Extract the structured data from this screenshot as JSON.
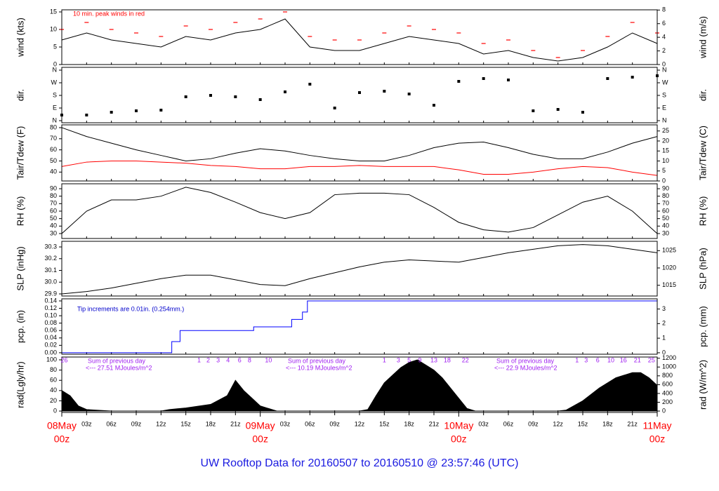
{
  "title": "UW Rooftop Data for 20160507  to  20160510 @ 23:57:46  (UTC)",
  "x_axis": {
    "xlim": [
      0,
      72
    ],
    "xticks": [
      {
        "value": 3,
        "label": "03z"
      },
      {
        "value": 6,
        "label": "06z"
      },
      {
        "value": 9,
        "label": "09z"
      },
      {
        "value": 12,
        "label": "12z"
      },
      {
        "value": 15,
        "label": "15z"
      },
      {
        "value": 18,
        "label": "18z"
      },
      {
        "value": 21,
        "label": "21z"
      },
      {
        "value": 27,
        "label": "03z"
      },
      {
        "value": 30,
        "label": "06z"
      },
      {
        "value": 33,
        "label": "09z"
      },
      {
        "value": 36,
        "label": "12z"
      },
      {
        "value": 39,
        "label": "15z"
      },
      {
        "value": 42,
        "label": "18z"
      },
      {
        "value": 45,
        "label": "21z"
      },
      {
        "value": 51,
        "label": "03z"
      },
      {
        "value": 54,
        "label": "06z"
      },
      {
        "value": 57,
        "label": "09z"
      },
      {
        "value": 60,
        "label": "12z"
      },
      {
        "value": 63,
        "label": "15z"
      },
      {
        "value": 66,
        "label": "18z"
      },
      {
        "value": 69,
        "label": "21z"
      }
    ],
    "date_ticks": [
      {
        "value": 0,
        "label": "08May",
        "sub": "00z"
      },
      {
        "value": 24,
        "label": "09May",
        "sub": "00z"
      },
      {
        "value": 48,
        "label": "10May",
        "sub": "00z"
      },
      {
        "value": 72,
        "label": "11May",
        "sub": "00z"
      }
    ],
    "color": "#ff0000"
  },
  "chart_data": [
    {
      "type": "line",
      "ylabel": "wind (kts)",
      "y2label": "wind (m/s)",
      "annotation": "10 min. peak winds in red",
      "annotation_color": "#ff0000",
      "ylim": [
        0,
        15.6
      ],
      "yticks": [
        0,
        5,
        10,
        15
      ],
      "y2lim": [
        0,
        8.03
      ],
      "y2ticks": [
        0,
        2,
        4,
        6,
        8
      ],
      "x": [
        0,
        3,
        6,
        9,
        12,
        15,
        18,
        21,
        24,
        27,
        30,
        33,
        36,
        39,
        42,
        45,
        48,
        51,
        54,
        57,
        60,
        63,
        66,
        69,
        72
      ],
      "series": [
        {
          "color": "#000000",
          "values": [
            7,
            9,
            7,
            6,
            5,
            8,
            7,
            9,
            10,
            13,
            5,
            4,
            4,
            6,
            8,
            7,
            6,
            3,
            4,
            2,
            1,
            2,
            5,
            9,
            6
          ]
        },
        {
          "color": "#ff0000",
          "marker": "dash",
          "values": [
            10,
            12,
            10,
            9,
            8,
            11,
            10,
            12,
            13,
            15,
            8,
            7,
            7,
            9,
            11,
            10,
            9,
            6,
            7,
            4,
            2,
            4,
            8,
            12,
            9
          ]
        }
      ]
    },
    {
      "type": "scatter",
      "ylabel": "dir.",
      "y2label": "dir.",
      "ylim": [
        -15,
        380
      ],
      "yticks": [
        {
          "value": 0,
          "label": "N"
        },
        {
          "value": 90,
          "label": "E"
        },
        {
          "value": 180,
          "label": "S"
        },
        {
          "value": 270,
          "label": "W"
        },
        {
          "value": 360,
          "label": "N"
        }
      ],
      "y2lim": [
        -15,
        380
      ],
      "y2ticks": [
        {
          "value": 0,
          "label": "N"
        },
        {
          "value": 90,
          "label": "E"
        },
        {
          "value": 180,
          "label": "S"
        },
        {
          "value": 270,
          "label": "W"
        },
        {
          "value": 360,
          "label": "N"
        }
      ],
      "x": [
        0,
        3,
        6,
        9,
        12,
        15,
        18,
        21,
        24,
        27,
        30,
        33,
        36,
        39,
        42,
        45,
        48,
        51,
        54,
        57,
        60,
        63,
        66,
        69,
        72
      ],
      "series": [
        {
          "color": "#000000",
          "values": [
            40,
            40,
            60,
            70,
            75,
            170,
            180,
            170,
            150,
            205,
            260,
            90,
            200,
            210,
            190,
            110,
            280,
            300,
            290,
            70,
            80,
            60,
            300,
            310,
            320
          ]
        }
      ]
    },
    {
      "type": "line",
      "ylabel": "Tair/Tdew (F)",
      "y2label": "Tair/Tdew (C)",
      "ylim": [
        32,
        82.5
      ],
      "yticks": [
        40,
        50,
        60,
        70,
        80
      ],
      "y2lim": [
        0,
        28.06
      ],
      "y2ticks": [
        0,
        5,
        10,
        15,
        20,
        25
      ],
      "x": [
        0,
        3,
        6,
        9,
        12,
        15,
        18,
        21,
        24,
        27,
        30,
        33,
        36,
        39,
        42,
        45,
        48,
        51,
        54,
        57,
        60,
        63,
        66,
        69,
        72
      ],
      "series": [
        {
          "color": "#000000",
          "values": [
            80,
            72,
            66,
            60,
            55,
            50,
            52,
            57,
            61,
            59,
            55,
            52,
            50,
            50,
            55,
            62,
            66,
            67,
            62,
            56,
            52,
            52,
            58,
            66,
            72
          ]
        },
        {
          "color": "#ff0000",
          "values": [
            45,
            49,
            50,
            50,
            49,
            48,
            46,
            45,
            43,
            43,
            45,
            45,
            46,
            45,
            45,
            45,
            42,
            38,
            38,
            40,
            43,
            45,
            44,
            40,
            37
          ]
        }
      ]
    },
    {
      "type": "line",
      "ylabel": "RH (%)",
      "y2label": "RH (%)",
      "ylim": [
        23.4,
        96.6
      ],
      "yticks": [
        30,
        40,
        50,
        60,
        70,
        80,
        90
      ],
      "y2lim": [
        23.4,
        96.6
      ],
      "y2ticks": [
        30,
        40,
        50,
        60,
        70,
        80,
        90
      ],
      "x": [
        0,
        3,
        6,
        9,
        12,
        15,
        18,
        21,
        24,
        27,
        30,
        33,
        36,
        39,
        42,
        45,
        48,
        51,
        54,
        57,
        60,
        63,
        66,
        69,
        72
      ],
      "series": [
        {
          "color": "#000000",
          "values": [
            30,
            60,
            75,
            75,
            80,
            92,
            85,
            72,
            58,
            50,
            58,
            82,
            84,
            84,
            82,
            65,
            45,
            35,
            32,
            38,
            55,
            72,
            80,
            60,
            30
          ]
        }
      ]
    },
    {
      "type": "line",
      "ylabel": "SLP (inHg)",
      "y2label": "SLP (hPa)",
      "ylim": [
        29.882,
        30.348
      ],
      "yticks": [
        {
          "value": 29.9,
          "label": "29.9"
        },
        {
          "value": 30,
          "label": "30.0"
        },
        30.1,
        30.2,
        30.3
      ],
      "y2lim": [
        1011.9,
        1027.7
      ],
      "y2ticks": [
        1015,
        1020,
        1025
      ],
      "x": [
        0,
        3,
        6,
        9,
        12,
        15,
        18,
        21,
        24,
        27,
        30,
        33,
        36,
        39,
        42,
        45,
        48,
        51,
        54,
        57,
        60,
        63,
        66,
        69,
        72
      ],
      "series": [
        {
          "color": "#000000",
          "values": [
            29.9,
            29.92,
            29.95,
            29.99,
            30.03,
            30.06,
            30.06,
            30.02,
            29.98,
            29.97,
            30.03,
            30.08,
            30.13,
            30.17,
            30.19,
            30.18,
            30.17,
            30.21,
            30.25,
            30.28,
            30.31,
            30.32,
            30.31,
            30.28,
            30.25
          ]
        }
      ]
    },
    {
      "type": "step",
      "ylabel": "pcp. (in)",
      "y2label": "pcp. (mm)",
      "annotation": "Tip increments are 0.01in. (0.254mm.)",
      "annotation_color": "#0000cc",
      "ylim": [
        -0.004,
        0.1457
      ],
      "yticks": [
        {
          "value": 0,
          "label": "0.00"
        },
        0.02,
        0.04,
        0.06,
        0.08,
        {
          "value": 0.1,
          "label": "0.10"
        },
        0.12,
        0.14
      ],
      "y2lim": [
        -0.1,
        3.7
      ],
      "y2ticks": [
        0,
        1,
        2,
        3
      ],
      "x": [
        0,
        13.3,
        14.3,
        23.2,
        27.8,
        29.1,
        29.7
      ],
      "series": [
        {
          "color": "#0000ff",
          "values": [
            0,
            0.03,
            0.06,
            0.07,
            0.09,
            0.11,
            0.14
          ]
        }
      ]
    },
    {
      "type": "area",
      "ylabel": "rad(Lgly/hr)",
      "y2label": "rad (W/m^2)",
      "ylim": [
        -2.7,
        105.5
      ],
      "yticks": [
        0,
        20,
        40,
        60,
        80,
        100
      ],
      "y2lim": [
        -31.4,
        1227
      ],
      "y2ticks": [
        0,
        200,
        400,
        600,
        800,
        1000,
        1200
      ],
      "x": [
        0,
        1,
        2,
        3,
        6,
        12,
        13,
        15,
        18,
        20,
        21,
        22,
        23,
        24,
        26,
        36,
        37,
        38,
        39,
        40,
        41,
        42,
        43,
        44,
        45,
        46,
        47,
        48,
        49,
        50,
        60,
        61,
        63,
        65,
        67,
        69,
        70,
        71,
        72
      ],
      "series": [
        {
          "color": "#000000",
          "values": [
            40,
            30,
            10,
            3,
            0,
            0,
            3,
            6,
            13,
            30,
            60,
            40,
            25,
            10,
            0,
            0,
            3,
            30,
            55,
            70,
            85,
            95,
            100,
            90,
            80,
            65,
            45,
            25,
            5,
            0,
            0,
            2,
            20,
            45,
            65,
            75,
            75,
            65,
            50
          ]
        }
      ],
      "annotation_color": "#a020f0",
      "sums": [
        {
          "label": "Sum of previous day",
          "value": "<--- 27.51 MJoules/m^2"
        },
        {
          "label": "Sum of previous day",
          "value": "<--- 10.19 MJoules/m^2"
        },
        {
          "label": "Sum of previous day",
          "value": "<--- 22.9 MJoules/m^2"
        }
      ],
      "hour_marks": [
        {
          "x": 0.3,
          "label": "26"
        },
        {
          "x": 16.6,
          "label": "1"
        },
        {
          "x": 17.7,
          "label": "2"
        },
        {
          "x": 18.9,
          "label": "3"
        },
        {
          "x": 20.1,
          "label": "4"
        },
        {
          "x": 21.5,
          "label": "6"
        },
        {
          "x": 22.7,
          "label": "8"
        },
        {
          "x": 25,
          "label": "10"
        },
        {
          "x": 39,
          "label": "1"
        },
        {
          "x": 40.7,
          "label": "3"
        },
        {
          "x": 42,
          "label": "5"
        },
        {
          "x": 43.3,
          "label": "9"
        },
        {
          "x": 45,
          "label": "13"
        },
        {
          "x": 46.6,
          "label": "18"
        },
        {
          "x": 48.8,
          "label": "22"
        },
        {
          "x": 62.3,
          "label": "1"
        },
        {
          "x": 63.4,
          "label": "3"
        },
        {
          "x": 64.8,
          "label": "6"
        },
        {
          "x": 66.4,
          "label": "10"
        },
        {
          "x": 67.9,
          "label": "16"
        },
        {
          "x": 69.6,
          "label": "21"
        },
        {
          "x": 71.3,
          "label": "25"
        }
      ]
    }
  ]
}
